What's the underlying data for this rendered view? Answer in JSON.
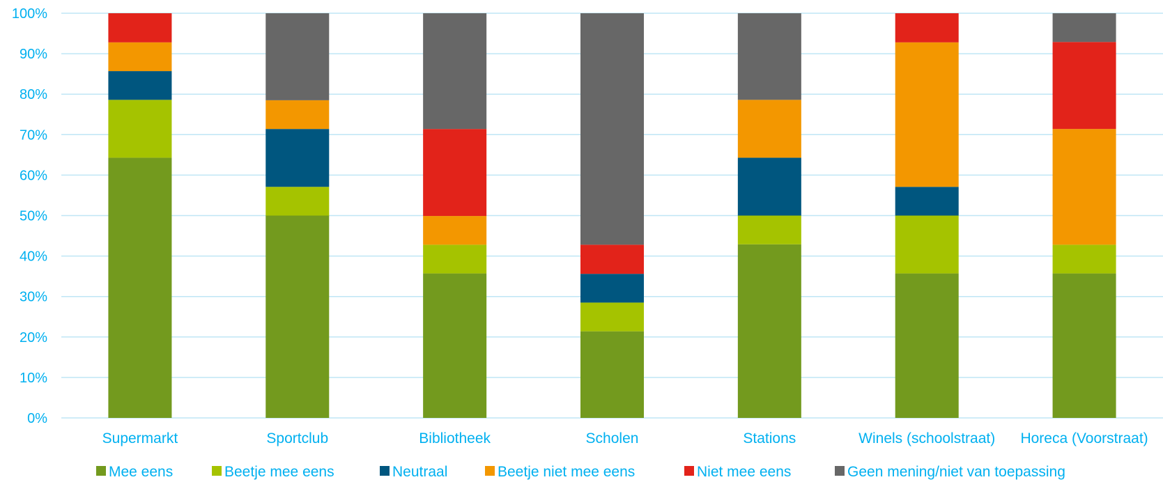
{
  "chart_data": {
    "type": "bar",
    "stacked": true,
    "percent": true,
    "categories": [
      "Supermarkt",
      "Sportclub",
      "Bibliotheek",
      "Scholen",
      "Stations",
      "Winels (schoolstraat)",
      "Horeca (Voorstraat)"
    ],
    "series": [
      {
        "name": "Mee eens",
        "color": "#739A1E",
        "values": [
          64.3,
          50.0,
          35.7,
          21.4,
          42.9,
          35.7,
          35.7
        ]
      },
      {
        "name": "Beetje mee eens",
        "color": "#A5C300",
        "values": [
          14.3,
          7.1,
          7.1,
          7.1,
          7.1,
          14.3,
          7.1
        ]
      },
      {
        "name": "Neutraal",
        "color": "#00567F",
        "values": [
          7.1,
          14.3,
          0,
          7.1,
          14.3,
          7.1,
          0
        ]
      },
      {
        "name": "Beetje niet mee eens",
        "color": "#F39700",
        "values": [
          7.1,
          7.1,
          7.1,
          0,
          14.3,
          35.7,
          28.6
        ]
      },
      {
        "name": "Niet mee eens",
        "color": "#E2231A",
        "values": [
          7.2,
          0,
          21.5,
          7.2,
          0,
          7.2,
          21.5
        ]
      },
      {
        "name": "Geen mening/niet van toepassing",
        "color": "#676767",
        "values": [
          0,
          21.5,
          28.6,
          57.2,
          21.4,
          0,
          7.1
        ]
      }
    ],
    "y_ticks": [
      "0%",
      "10%",
      "20%",
      "30%",
      "40%",
      "50%",
      "60%",
      "70%",
      "80%",
      "90%",
      "100%"
    ],
    "ylim": [
      0,
      100
    ],
    "grid": true,
    "legend_position": "bottom"
  }
}
